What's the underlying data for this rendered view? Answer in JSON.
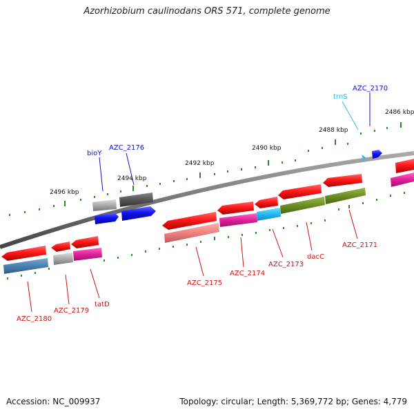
{
  "title": "Azorhizobium caulinodans ORS 571, complete genome",
  "footer": {
    "accession": "Accession: NC_009937",
    "summary": "Topology: circular; Length: 5,369,772 bp; Genes: 4,779"
  },
  "scale_labels": [
    "2486 kbp",
    "2488 kbp",
    "2490 kbp",
    "2492 kbp",
    "2494 kbp",
    "2496 kbp"
  ],
  "gene_labels": [
    {
      "text": "AZC_2170",
      "color": "#1010c0",
      "strand": "forward"
    },
    {
      "text": "trnS",
      "color": "#33bbdd",
      "strand": "forward"
    },
    {
      "text": "AZC_2176",
      "color": "#1010c0",
      "strand": "forward"
    },
    {
      "text": "bioY",
      "color": "#1010c0",
      "strand": "forward"
    },
    {
      "text": "AZC_2171",
      "color": "#cc1111",
      "strand": "reverse"
    },
    {
      "text": "dacC",
      "color": "#cc1111",
      "strand": "reverse"
    },
    {
      "text": "AZC_2173",
      "color": "#cc1111",
      "strand": "reverse"
    },
    {
      "text": "AZC_2174",
      "color": "#cc1111",
      "strand": "reverse"
    },
    {
      "text": "AZC_2175",
      "color": "#cc1111",
      "strand": "reverse"
    },
    {
      "text": "tatD",
      "color": "#cc1111",
      "strand": "reverse"
    },
    {
      "text": "AZC_2179",
      "color": "#cc1111",
      "strand": "reverse"
    },
    {
      "text": "AZC_2180",
      "color": "#cc1111",
      "strand": "reverse"
    }
  ],
  "colors": {
    "backbone": "#777777",
    "forward_tick": "#2a8a2a",
    "reverse_tick": "#2a8a2a",
    "cds_reverse": "#ee1111",
    "cds_forward": "#1111ee",
    "cog_blue_steel": "#4a7fb0",
    "cog_magenta": "#e0219a",
    "cog_cyan": "#22b8f0",
    "cog_olive": "#6b8e23",
    "cog_salmon": "#f08080",
    "cog_gray": "#aaaaaa",
    "cog_dark_gray": "#555555"
  }
}
